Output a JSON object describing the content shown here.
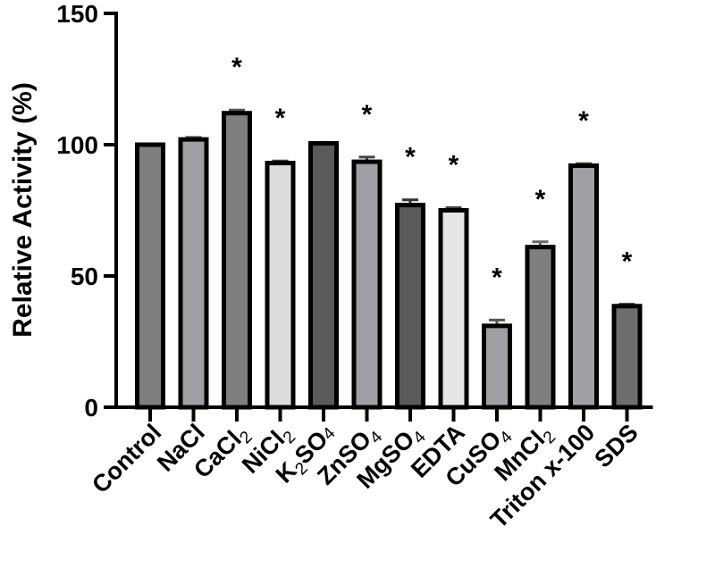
{
  "chart_data": {
    "type": "bar",
    "ylabel": "Relative Activity (%)",
    "xlabel": "",
    "title": "",
    "ylim": [
      0,
      150
    ],
    "yticks": [
      0,
      50,
      100,
      150
    ],
    "grid": false,
    "categories": [
      {
        "base": "Control",
        "sub": "",
        "rest": ""
      },
      {
        "base": "NaCl",
        "sub": "",
        "rest": ""
      },
      {
        "base": "CaCl",
        "sub": "2",
        "rest": ""
      },
      {
        "base": "NiCl",
        "sub": "2",
        "rest": ""
      },
      {
        "base": "K",
        "sub": "2",
        "rest": "SO4"
      },
      {
        "base": "ZnSO",
        "sub": "4",
        "rest": ""
      },
      {
        "base": "MgSO",
        "sub": "4",
        "rest": ""
      },
      {
        "base": "EDTA",
        "sub": "",
        "rest": ""
      },
      {
        "base": "CuSO",
        "sub": "4",
        "rest": ""
      },
      {
        "base": "MnCl",
        "sub": "2",
        "rest": ""
      },
      {
        "base": "Triton x-100",
        "sub": "",
        "rest": ""
      },
      {
        "base": "SDS",
        "sub": "",
        "rest": ""
      }
    ],
    "values": [
      100,
      102,
      112,
      93,
      100.5,
      93.5,
      77,
      75,
      31,
      61,
      92,
      38.5
    ],
    "errors": [
      0,
      0.8,
      1.2,
      0.8,
      0.4,
      1.8,
      2.0,
      1.0,
      2.2,
      2.0,
      0.8,
      0.8
    ],
    "significant": [
      false,
      false,
      true,
      true,
      false,
      true,
      true,
      true,
      true,
      true,
      true,
      true
    ],
    "significance_marker": "*",
    "bar_colors": [
      "#7f7f7f",
      "#a0a0a4",
      "#7f7f7f",
      "#dcdcdc",
      "#5a5a5a",
      "#a0a0a4",
      "#5a5a5a",
      "#e6e6e6",
      "#a0a0a4",
      "#7f7f7f",
      "#a0a0a4",
      "#6e6e6e"
    ],
    "errorbar_colors": [
      "#555555",
      "#666666",
      "#555555",
      "#444444",
      "#555555",
      "#444444",
      "#333333",
      "#444444",
      "#555555",
      "#666666",
      "#555555",
      "#555555"
    ]
  }
}
